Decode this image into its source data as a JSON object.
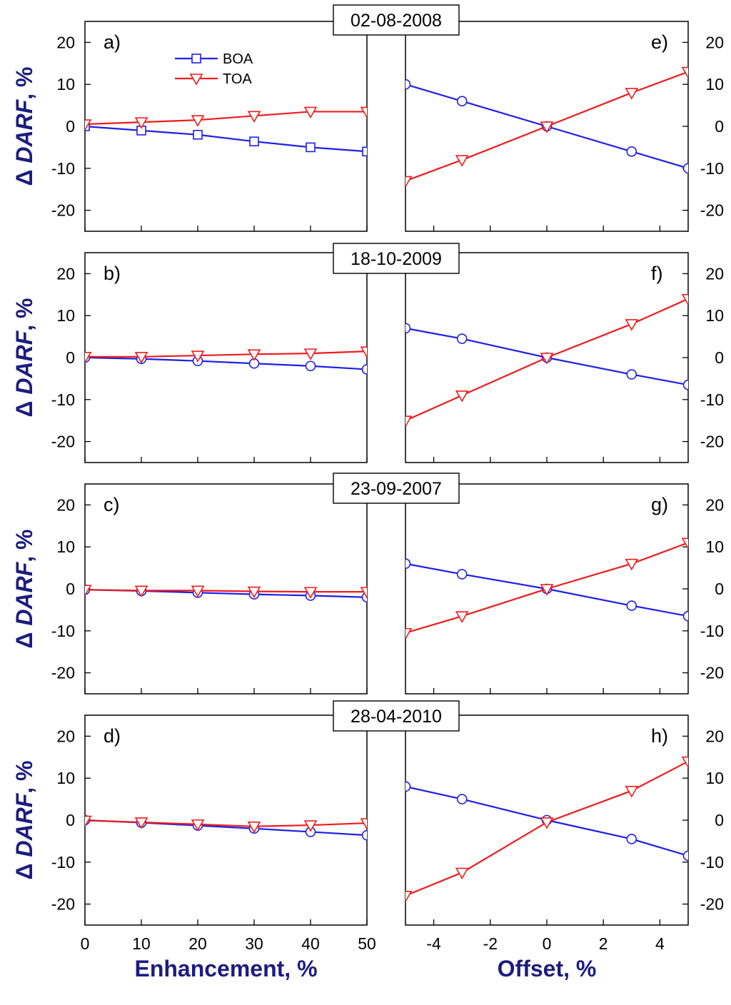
{
  "colors": {
    "boa": "#1f1fe6",
    "toa": "#ee1c1c",
    "axis_title": "#1c1c80"
  },
  "figure": {
    "ylabel_prefix": "Δ ",
    "ylabel_italic": "DARF",
    "ylabel_suffix": ", %",
    "xlabel_left": "Enhancement, %",
    "xlabel_right": "Offset, %",
    "legend": {
      "boa": "BOA",
      "toa": "TOA"
    }
  },
  "chart_data": [
    {
      "type": "line",
      "panel": "a)",
      "date": "02-08-2008",
      "xlabel": "Enhancement, %",
      "ylabel": "Δ DARF, %",
      "xlim": [
        0,
        50
      ],
      "ylim": [
        -25,
        25
      ],
      "xticks": [
        0,
        10,
        20,
        30,
        40,
        50
      ],
      "yticks": [
        -20,
        -10,
        0,
        10,
        20
      ],
      "x": [
        0,
        10,
        20,
        30,
        40,
        50
      ],
      "series": [
        {
          "name": "BOA",
          "marker": "square",
          "values": [
            0,
            -1,
            -2,
            -3.6,
            -5,
            -6
          ]
        },
        {
          "name": "TOA",
          "marker": "triangle-down",
          "values": [
            0.5,
            1,
            1.5,
            2.5,
            3.5,
            3.5
          ]
        }
      ]
    },
    {
      "type": "line",
      "panel": "e)",
      "date": "02-08-2008",
      "xlabel": "Offset, %",
      "ylabel": "Δ DARF, %",
      "xlim": [
        -5,
        5
      ],
      "ylim": [
        -25,
        25
      ],
      "xticks": [
        -4,
        -2,
        0,
        2,
        4
      ],
      "yticks": [
        -20,
        -10,
        0,
        10,
        20
      ],
      "x": [
        -5,
        -3,
        0,
        3,
        5
      ],
      "series": [
        {
          "name": "BOA",
          "marker": "circle",
          "values": [
            10,
            6,
            0,
            -6,
            -10
          ]
        },
        {
          "name": "TOA",
          "marker": "triangle-down",
          "values": [
            -13,
            -8,
            0,
            8,
            13
          ]
        }
      ]
    },
    {
      "type": "line",
      "panel": "b)",
      "date": "18-10-2009",
      "xlabel": "Enhancement, %",
      "ylabel": "Δ DARF, %",
      "xlim": [
        0,
        50
      ],
      "ylim": [
        -25,
        25
      ],
      "xticks": [
        0,
        10,
        20,
        30,
        40,
        50
      ],
      "yticks": [
        -20,
        -10,
        0,
        10,
        20
      ],
      "x": [
        0,
        10,
        20,
        30,
        40,
        50
      ],
      "series": [
        {
          "name": "BOA",
          "marker": "circle",
          "values": [
            0,
            -0.3,
            -0.8,
            -1.4,
            -2,
            -2.8
          ]
        },
        {
          "name": "TOA",
          "marker": "triangle-down",
          "values": [
            0.2,
            0.2,
            0.5,
            0.8,
            1,
            1.5
          ]
        }
      ]
    },
    {
      "type": "line",
      "panel": "f)",
      "date": "18-10-2009",
      "xlabel": "Offset, %",
      "ylabel": "Δ DARF, %",
      "xlim": [
        -5,
        5
      ],
      "ylim": [
        -25,
        25
      ],
      "xticks": [
        -4,
        -2,
        0,
        2,
        4
      ],
      "yticks": [
        -20,
        -10,
        0,
        10,
        20
      ],
      "x": [
        -5,
        -3,
        0,
        3,
        5
      ],
      "series": [
        {
          "name": "BOA",
          "marker": "circle",
          "values": [
            7,
            4.5,
            0,
            -4,
            -6.5
          ]
        },
        {
          "name": "TOA",
          "marker": "triangle-down",
          "values": [
            -15,
            -9,
            0,
            8,
            14
          ]
        }
      ]
    },
    {
      "type": "line",
      "panel": "c)",
      "date": "23-09-2007",
      "xlabel": "Enhancement, %",
      "ylabel": "Δ DARF, %",
      "xlim": [
        0,
        50
      ],
      "ylim": [
        -25,
        25
      ],
      "xticks": [
        0,
        10,
        20,
        30,
        40,
        50
      ],
      "yticks": [
        -20,
        -10,
        0,
        10,
        20
      ],
      "x": [
        0,
        10,
        20,
        30,
        40,
        50
      ],
      "series": [
        {
          "name": "BOA",
          "marker": "circle",
          "values": [
            -0.2,
            -0.5,
            -0.9,
            -1.3,
            -1.6,
            -2
          ]
        },
        {
          "name": "TOA",
          "marker": "triangle-down",
          "values": [
            -0.2,
            -0.4,
            -0.4,
            -0.6,
            -0.7,
            -0.7
          ]
        }
      ]
    },
    {
      "type": "line",
      "panel": "g)",
      "date": "23-09-2007",
      "xlabel": "Offset, %",
      "ylabel": "Δ DARF, %",
      "xlim": [
        -5,
        5
      ],
      "ylim": [
        -25,
        25
      ],
      "xticks": [
        -4,
        -2,
        0,
        2,
        4
      ],
      "yticks": [
        -20,
        -10,
        0,
        10,
        20
      ],
      "x": [
        -5,
        -3,
        0,
        3,
        5
      ],
      "series": [
        {
          "name": "BOA",
          "marker": "circle",
          "values": [
            6,
            3.5,
            0,
            -4,
            -6.5
          ]
        },
        {
          "name": "TOA",
          "marker": "triangle-down",
          "values": [
            -10.5,
            -6.5,
            0,
            6,
            11
          ]
        }
      ]
    },
    {
      "type": "line",
      "panel": "d)",
      "date": "28-04-2010",
      "xlabel": "Enhancement, %",
      "ylabel": "Δ DARF, %",
      "xlim": [
        0,
        50
      ],
      "ylim": [
        -25,
        25
      ],
      "xticks": [
        0,
        10,
        20,
        30,
        40,
        50
      ],
      "yticks": [
        -20,
        -10,
        0,
        10,
        20
      ],
      "x": [
        0,
        10,
        20,
        30,
        40,
        50
      ],
      "series": [
        {
          "name": "BOA",
          "marker": "circle",
          "values": [
            0,
            -0.6,
            -1.3,
            -2,
            -2.8,
            -3.6
          ]
        },
        {
          "name": "TOA",
          "marker": "triangle-down",
          "values": [
            -0.1,
            -0.5,
            -1,
            -1.5,
            -1.2,
            -0.7
          ]
        }
      ]
    },
    {
      "type": "line",
      "panel": "h)",
      "date": "28-04-2010",
      "xlabel": "Offset, %",
      "ylabel": "Δ DARF, %",
      "xlim": [
        -5,
        5
      ],
      "ylim": [
        -25,
        25
      ],
      "xticks": [
        -4,
        -2,
        0,
        2,
        4
      ],
      "yticks": [
        -20,
        -10,
        0,
        10,
        20
      ],
      "x": [
        -5,
        -3,
        0,
        3,
        5
      ],
      "series": [
        {
          "name": "BOA",
          "marker": "circle",
          "values": [
            8,
            5,
            0,
            -4.5,
            -8.5
          ]
        },
        {
          "name": "TOA",
          "marker": "triangle-down",
          "values": [
            -18,
            -12.5,
            -0.5,
            7,
            14
          ]
        }
      ]
    }
  ]
}
